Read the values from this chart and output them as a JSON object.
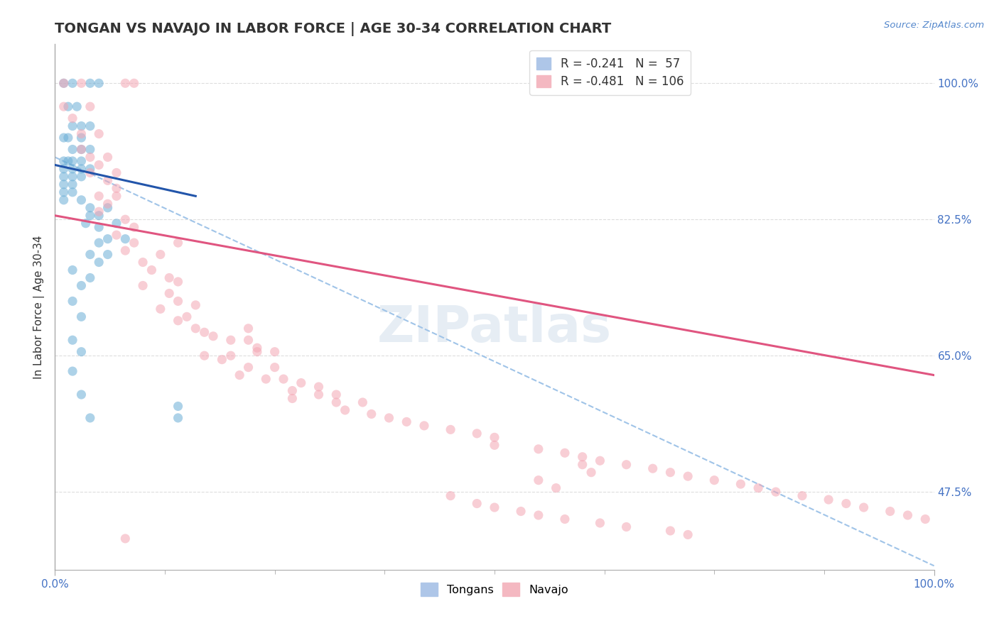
{
  "title": "TONGAN VS NAVAJO IN LABOR FORCE | AGE 30-34 CORRELATION CHART",
  "source_text": "Source: ZipAtlas.com",
  "ylabel": "In Labor Force | Age 30-34",
  "xlim": [
    0.0,
    1.0
  ],
  "ylim": [
    0.375,
    1.05
  ],
  "yticks": [
    0.475,
    0.65,
    0.825,
    1.0
  ],
  "ytick_labels": [
    "47.5%",
    "65.0%",
    "82.5%",
    "100.0%"
  ],
  "xticks": [
    0.0,
    1.0
  ],
  "xtick_labels": [
    "0.0%",
    "100.0%"
  ],
  "tongan_color": "#6baed6",
  "navajo_color": "#f4a6b4",
  "point_size": 90,
  "point_alpha": 0.55,
  "background_color": "#ffffff",
  "watermark": "ZIPatlas",
  "title_fontsize": 14,
  "axis_label_fontsize": 11,
  "tick_fontsize": 11,
  "tongan_line_color": "#2255aa",
  "navajo_line_color": "#e05580",
  "dashed_line_color": "#a0c4e8",
  "tongan_line": [
    0.0,
    0.895,
    0.16,
    0.855
  ],
  "navajo_line": [
    0.0,
    0.83,
    1.0,
    0.625
  ],
  "dashed_line": [
    0.0,
    0.905,
    1.0,
    0.38
  ],
  "tongan_points": [
    [
      0.01,
      1.0
    ],
    [
      0.02,
      1.0
    ],
    [
      0.04,
      1.0
    ],
    [
      0.05,
      1.0
    ],
    [
      0.015,
      0.97
    ],
    [
      0.025,
      0.97
    ],
    [
      0.02,
      0.945
    ],
    [
      0.03,
      0.945
    ],
    [
      0.04,
      0.945
    ],
    [
      0.01,
      0.93
    ],
    [
      0.015,
      0.93
    ],
    [
      0.03,
      0.93
    ],
    [
      0.02,
      0.915
    ],
    [
      0.03,
      0.915
    ],
    [
      0.04,
      0.915
    ],
    [
      0.01,
      0.9
    ],
    [
      0.015,
      0.9
    ],
    [
      0.02,
      0.9
    ],
    [
      0.03,
      0.9
    ],
    [
      0.01,
      0.89
    ],
    [
      0.02,
      0.89
    ],
    [
      0.03,
      0.89
    ],
    [
      0.04,
      0.89
    ],
    [
      0.01,
      0.88
    ],
    [
      0.02,
      0.88
    ],
    [
      0.03,
      0.88
    ],
    [
      0.01,
      0.87
    ],
    [
      0.02,
      0.87
    ],
    [
      0.01,
      0.86
    ],
    [
      0.02,
      0.86
    ],
    [
      0.01,
      0.85
    ],
    [
      0.03,
      0.85
    ],
    [
      0.04,
      0.84
    ],
    [
      0.06,
      0.84
    ],
    [
      0.04,
      0.83
    ],
    [
      0.05,
      0.83
    ],
    [
      0.035,
      0.82
    ],
    [
      0.07,
      0.82
    ],
    [
      0.05,
      0.815
    ],
    [
      0.06,
      0.8
    ],
    [
      0.08,
      0.8
    ],
    [
      0.05,
      0.795
    ],
    [
      0.04,
      0.78
    ],
    [
      0.06,
      0.78
    ],
    [
      0.05,
      0.77
    ],
    [
      0.02,
      0.76
    ],
    [
      0.04,
      0.75
    ],
    [
      0.03,
      0.74
    ],
    [
      0.02,
      0.72
    ],
    [
      0.03,
      0.7
    ],
    [
      0.02,
      0.67
    ],
    [
      0.03,
      0.655
    ],
    [
      0.02,
      0.63
    ],
    [
      0.03,
      0.6
    ],
    [
      0.04,
      0.57
    ],
    [
      0.14,
      0.585
    ],
    [
      0.14,
      0.57
    ]
  ],
  "navajo_points": [
    [
      0.01,
      1.0
    ],
    [
      0.03,
      1.0
    ],
    [
      0.08,
      1.0
    ],
    [
      0.09,
      1.0
    ],
    [
      0.01,
      0.97
    ],
    [
      0.04,
      0.97
    ],
    [
      0.02,
      0.955
    ],
    [
      0.03,
      0.935
    ],
    [
      0.05,
      0.935
    ],
    [
      0.03,
      0.915
    ],
    [
      0.04,
      0.905
    ],
    [
      0.06,
      0.905
    ],
    [
      0.05,
      0.895
    ],
    [
      0.04,
      0.885
    ],
    [
      0.07,
      0.885
    ],
    [
      0.06,
      0.875
    ],
    [
      0.07,
      0.865
    ],
    [
      0.05,
      0.855
    ],
    [
      0.07,
      0.855
    ],
    [
      0.06,
      0.845
    ],
    [
      0.05,
      0.835
    ],
    [
      0.08,
      0.825
    ],
    [
      0.09,
      0.815
    ],
    [
      0.07,
      0.805
    ],
    [
      0.09,
      0.795
    ],
    [
      0.14,
      0.795
    ],
    [
      0.08,
      0.785
    ],
    [
      0.12,
      0.78
    ],
    [
      0.1,
      0.77
    ],
    [
      0.11,
      0.76
    ],
    [
      0.13,
      0.75
    ],
    [
      0.14,
      0.745
    ],
    [
      0.1,
      0.74
    ],
    [
      0.13,
      0.73
    ],
    [
      0.14,
      0.72
    ],
    [
      0.16,
      0.715
    ],
    [
      0.12,
      0.71
    ],
    [
      0.15,
      0.7
    ],
    [
      0.14,
      0.695
    ],
    [
      0.16,
      0.685
    ],
    [
      0.22,
      0.685
    ],
    [
      0.17,
      0.68
    ],
    [
      0.18,
      0.675
    ],
    [
      0.2,
      0.67
    ],
    [
      0.22,
      0.67
    ],
    [
      0.23,
      0.66
    ],
    [
      0.23,
      0.655
    ],
    [
      0.25,
      0.655
    ],
    [
      0.17,
      0.65
    ],
    [
      0.2,
      0.65
    ],
    [
      0.19,
      0.645
    ],
    [
      0.22,
      0.635
    ],
    [
      0.25,
      0.635
    ],
    [
      0.21,
      0.625
    ],
    [
      0.24,
      0.62
    ],
    [
      0.26,
      0.62
    ],
    [
      0.28,
      0.615
    ],
    [
      0.3,
      0.61
    ],
    [
      0.27,
      0.605
    ],
    [
      0.3,
      0.6
    ],
    [
      0.32,
      0.6
    ],
    [
      0.27,
      0.595
    ],
    [
      0.32,
      0.59
    ],
    [
      0.35,
      0.59
    ],
    [
      0.33,
      0.58
    ],
    [
      0.36,
      0.575
    ],
    [
      0.38,
      0.57
    ],
    [
      0.4,
      0.565
    ],
    [
      0.42,
      0.56
    ],
    [
      0.45,
      0.555
    ],
    [
      0.48,
      0.55
    ],
    [
      0.5,
      0.545
    ],
    [
      0.5,
      0.535
    ],
    [
      0.55,
      0.53
    ],
    [
      0.58,
      0.525
    ],
    [
      0.6,
      0.52
    ],
    [
      0.62,
      0.515
    ],
    [
      0.65,
      0.51
    ],
    [
      0.68,
      0.505
    ],
    [
      0.7,
      0.5
    ],
    [
      0.72,
      0.495
    ],
    [
      0.75,
      0.49
    ],
    [
      0.78,
      0.485
    ],
    [
      0.8,
      0.48
    ],
    [
      0.82,
      0.475
    ],
    [
      0.85,
      0.47
    ],
    [
      0.88,
      0.465
    ],
    [
      0.9,
      0.46
    ],
    [
      0.92,
      0.455
    ],
    [
      0.95,
      0.45
    ],
    [
      0.97,
      0.445
    ],
    [
      0.99,
      0.44
    ],
    [
      0.08,
      0.415
    ],
    [
      0.6,
      0.51
    ],
    [
      0.61,
      0.5
    ],
    [
      0.55,
      0.49
    ],
    [
      0.57,
      0.48
    ],
    [
      0.45,
      0.47
    ],
    [
      0.48,
      0.46
    ],
    [
      0.5,
      0.455
    ],
    [
      0.53,
      0.45
    ],
    [
      0.55,
      0.445
    ],
    [
      0.58,
      0.44
    ],
    [
      0.62,
      0.435
    ],
    [
      0.65,
      0.43
    ],
    [
      0.7,
      0.425
    ],
    [
      0.72,
      0.42
    ]
  ]
}
